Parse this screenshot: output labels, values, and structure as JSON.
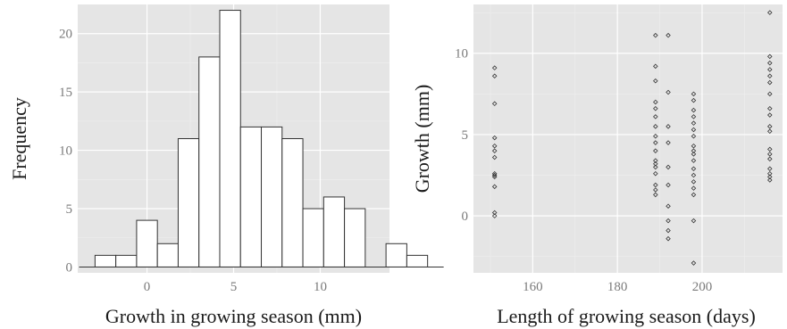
{
  "colors": {
    "panel_background": "#e5e5e5",
    "grid_major": "#ffffff",
    "grid_minor": "#efefef",
    "bar_fill": "#ffffff",
    "bar_stroke": "#333333",
    "point_stroke": "#333333",
    "tick_label": "#7a7a7a",
    "axis_title": "#1a1a1a"
  },
  "chart_data": [
    {
      "type": "bar",
      "subtype": "histogram",
      "title": "",
      "xlabel": "Growth in growing season (mm)",
      "ylabel": "Frequency",
      "bin_width": 1.2,
      "bins": [
        {
          "start": -3.0,
          "end": -1.8,
          "count": 1
        },
        {
          "start": -1.8,
          "end": -0.6,
          "count": 1
        },
        {
          "start": -0.6,
          "end": 0.6,
          "count": 4
        },
        {
          "start": 0.6,
          "end": 1.8,
          "count": 2
        },
        {
          "start": 1.8,
          "end": 3.0,
          "count": 11
        },
        {
          "start": 3.0,
          "end": 4.2,
          "count": 18
        },
        {
          "start": 4.2,
          "end": 5.4,
          "count": 22
        },
        {
          "start": 5.4,
          "end": 6.6,
          "count": 12
        },
        {
          "start": 6.6,
          "end": 7.8,
          "count": 12
        },
        {
          "start": 7.8,
          "end": 9.0,
          "count": 11
        },
        {
          "start": 9.0,
          "end": 10.2,
          "count": 5
        },
        {
          "start": 10.2,
          "end": 11.4,
          "count": 6
        },
        {
          "start": 11.4,
          "end": 12.6,
          "count": 5
        },
        {
          "start": 12.6,
          "end": 13.8,
          "count": 0
        },
        {
          "start": 13.8,
          "end": 15.0,
          "count": 2
        },
        {
          "start": 15.0,
          "end": 16.2,
          "count": 1
        }
      ],
      "xlim": [
        -4,
        14
      ],
      "ylim": [
        -0.5,
        22.5
      ],
      "x_ticks": [
        0,
        5,
        10
      ],
      "x_tick_labels": [
        "0",
        "5",
        "10"
      ],
      "y_ticks": [
        0,
        5,
        10,
        15,
        20
      ],
      "y_tick_labels": [
        "0",
        "5",
        "10",
        "15",
        "20"
      ],
      "grid": true,
      "legend": "none"
    },
    {
      "type": "scatter",
      "title": "",
      "xlabel": "Length of growing season (days)",
      "ylabel": "Growth (mm)",
      "xlim": [
        146,
        219
      ],
      "ylim": [
        -3.5,
        13
      ],
      "x_ticks": [
        160,
        180,
        200
      ],
      "x_tick_labels": [
        "160",
        "180",
        "200"
      ],
      "y_ticks": [
        0,
        5,
        10
      ],
      "y_tick_labels": [
        "0",
        "5",
        "10"
      ],
      "grid": true,
      "legend": "none",
      "marker": "open-diamond",
      "points": [
        {
          "x": 151,
          "y": 9.1
        },
        {
          "x": 151,
          "y": 8.6
        },
        {
          "x": 151,
          "y": 6.9
        },
        {
          "x": 151,
          "y": 4.8
        },
        {
          "x": 151,
          "y": 4.3
        },
        {
          "x": 151,
          "y": 4.0
        },
        {
          "x": 151,
          "y": 3.6
        },
        {
          "x": 151,
          "y": 2.6
        },
        {
          "x": 151,
          "y": 2.5
        },
        {
          "x": 151,
          "y": 2.4
        },
        {
          "x": 151,
          "y": 1.8
        },
        {
          "x": 151,
          "y": 0.2
        },
        {
          "x": 151,
          "y": 0.0
        },
        {
          "x": 189,
          "y": 11.1
        },
        {
          "x": 189,
          "y": 9.2
        },
        {
          "x": 189,
          "y": 8.3
        },
        {
          "x": 189,
          "y": 7.0
        },
        {
          "x": 189,
          "y": 6.6
        },
        {
          "x": 189,
          "y": 6.1
        },
        {
          "x": 189,
          "y": 5.5
        },
        {
          "x": 189,
          "y": 4.9
        },
        {
          "x": 189,
          "y": 4.5
        },
        {
          "x": 189,
          "y": 4.0
        },
        {
          "x": 189,
          "y": 3.4
        },
        {
          "x": 189,
          "y": 3.2
        },
        {
          "x": 189,
          "y": 3.0
        },
        {
          "x": 189,
          "y": 2.6
        },
        {
          "x": 189,
          "y": 1.9
        },
        {
          "x": 189,
          "y": 1.6
        },
        {
          "x": 189,
          "y": 1.3
        },
        {
          "x": 192,
          "y": 11.1
        },
        {
          "x": 192,
          "y": 7.6
        },
        {
          "x": 192,
          "y": 5.5
        },
        {
          "x": 192,
          "y": 4.5
        },
        {
          "x": 192,
          "y": 3.0
        },
        {
          "x": 192,
          "y": 1.9
        },
        {
          "x": 192,
          "y": 0.6
        },
        {
          "x": 192,
          "y": -0.3
        },
        {
          "x": 192,
          "y": -0.9
        },
        {
          "x": 192,
          "y": -1.4
        },
        {
          "x": 198,
          "y": 7.5
        },
        {
          "x": 198,
          "y": 7.1
        },
        {
          "x": 198,
          "y": 6.5
        },
        {
          "x": 198,
          "y": 6.1
        },
        {
          "x": 198,
          "y": 5.7
        },
        {
          "x": 198,
          "y": 5.3
        },
        {
          "x": 198,
          "y": 4.9
        },
        {
          "x": 198,
          "y": 4.3
        },
        {
          "x": 198,
          "y": 4.0
        },
        {
          "x": 198,
          "y": 3.8
        },
        {
          "x": 198,
          "y": 3.4
        },
        {
          "x": 198,
          "y": 2.9
        },
        {
          "x": 198,
          "y": 2.5
        },
        {
          "x": 198,
          "y": 2.1
        },
        {
          "x": 198,
          "y": 1.7
        },
        {
          "x": 198,
          "y": 1.3
        },
        {
          "x": 198,
          "y": -0.3
        },
        {
          "x": 198,
          "y": -2.9
        },
        {
          "x": 216,
          "y": 12.5
        },
        {
          "x": 216,
          "y": 9.8
        },
        {
          "x": 216,
          "y": 9.4
        },
        {
          "x": 216,
          "y": 9.0
        },
        {
          "x": 216,
          "y": 8.6
        },
        {
          "x": 216,
          "y": 8.2
        },
        {
          "x": 216,
          "y": 7.5
        },
        {
          "x": 216,
          "y": 6.6
        },
        {
          "x": 216,
          "y": 6.2
        },
        {
          "x": 216,
          "y": 5.5
        },
        {
          "x": 216,
          "y": 5.2
        },
        {
          "x": 216,
          "y": 4.1
        },
        {
          "x": 216,
          "y": 3.8
        },
        {
          "x": 216,
          "y": 3.5
        },
        {
          "x": 216,
          "y": 2.9
        },
        {
          "x": 216,
          "y": 2.6
        },
        {
          "x": 216,
          "y": 2.4
        },
        {
          "x": 216,
          "y": 2.2
        }
      ]
    }
  ]
}
